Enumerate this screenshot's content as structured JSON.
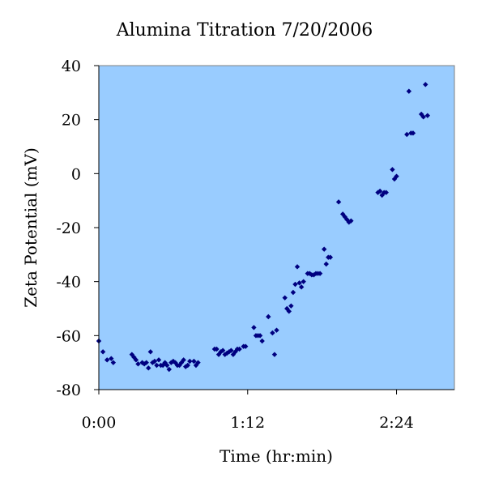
{
  "chart_data": {
    "type": "scatter",
    "title": "Alumina Titration 7/20/2006",
    "xlabel": "Time (hr:min)",
    "ylabel": "Zeta Potential (mV)",
    "xlim": [
      0,
      172
    ],
    "ylim": [
      -80,
      40
    ],
    "x_ticks": [
      {
        "value": 0,
        "label": "0:00"
      },
      {
        "value": 72,
        "label": "1:12"
      },
      {
        "value": 144,
        "label": "2:24"
      }
    ],
    "y_ticks": [
      {
        "value": 40,
        "label": "40"
      },
      {
        "value": 20,
        "label": "20"
      },
      {
        "value": 0,
        "label": "0"
      },
      {
        "value": -20,
        "label": "-20"
      },
      {
        "value": -40,
        "label": "-40"
      },
      {
        "value": -60,
        "label": "-60"
      },
      {
        "value": -80,
        "label": "-80"
      }
    ],
    "grid": false,
    "legend": "none",
    "colors": {
      "plot_background": "#99ccff",
      "marker": "#000080",
      "axis": "#000000"
    },
    "series": [
      {
        "points": [
          [
            0,
            -62
          ],
          [
            2,
            -66
          ],
          [
            4,
            -69
          ],
          [
            6,
            -68.5
          ],
          [
            7,
            -70
          ],
          [
            16,
            -67
          ],
          [
            17,
            -68
          ],
          [
            18,
            -69
          ],
          [
            19,
            -70.5
          ],
          [
            21,
            -70
          ],
          [
            22,
            -70.5
          ],
          [
            23,
            -70
          ],
          [
            24,
            -72
          ],
          [
            25,
            -66
          ],
          [
            26,
            -70
          ],
          [
            27,
            -69.5
          ],
          [
            28,
            -71
          ],
          [
            29,
            -69
          ],
          [
            30,
            -71
          ],
          [
            31,
            -71
          ],
          [
            32,
            -70
          ],
          [
            33,
            -71
          ],
          [
            34,
            -72.5
          ],
          [
            35,
            -70
          ],
          [
            36,
            -69.5
          ],
          [
            37,
            -70
          ],
          [
            38,
            -71
          ],
          [
            39,
            -71
          ],
          [
            40,
            -70
          ],
          [
            41,
            -69
          ],
          [
            42,
            -71.5
          ],
          [
            43,
            -71
          ],
          [
            44,
            -69.5
          ],
          [
            46,
            -69.5
          ],
          [
            47,
            -71
          ],
          [
            48,
            -70
          ],
          [
            56,
            -65
          ],
          [
            57,
            -65
          ],
          [
            58,
            -67
          ],
          [
            59,
            -66
          ],
          [
            60,
            -65.5
          ],
          [
            61,
            -67
          ],
          [
            62,
            -66.5
          ],
          [
            63,
            -66
          ],
          [
            64,
            -65.5
          ],
          [
            65,
            -67
          ],
          [
            66,
            -66
          ],
          [
            67,
            -65
          ],
          [
            68,
            -65
          ],
          [
            70,
            -64
          ],
          [
            71,
            -64
          ],
          [
            75,
            -57
          ],
          [
            76,
            -60
          ],
          [
            77,
            -60
          ],
          [
            78,
            -60
          ],
          [
            79,
            -62
          ],
          [
            82,
            -53
          ],
          [
            84,
            -59
          ],
          [
            85,
            -67
          ],
          [
            86,
            -58
          ],
          [
            90,
            -46
          ],
          [
            91,
            -50
          ],
          [
            92,
            -51
          ],
          [
            93,
            -49
          ],
          [
            94,
            -44
          ],
          [
            95,
            -41
          ],
          [
            96,
            -34.5
          ],
          [
            97,
            -40.5
          ],
          [
            98,
            -42
          ],
          [
            99,
            -40
          ],
          [
            101,
            -37
          ],
          [
            102,
            -37
          ],
          [
            103,
            -37.5
          ],
          [
            104,
            -37.5
          ],
          [
            105,
            -37
          ],
          [
            106,
            -37
          ],
          [
            107,
            -37
          ],
          [
            109,
            -28
          ],
          [
            110,
            -33.5
          ],
          [
            111,
            -31
          ],
          [
            112,
            -31
          ],
          [
            116,
            -10.5
          ],
          [
            118,
            -15
          ],
          [
            119,
            -16
          ],
          [
            120,
            -17
          ],
          [
            121,
            -18
          ],
          [
            122,
            -17.5
          ],
          [
            135,
            -7
          ],
          [
            136,
            -6.5
          ],
          [
            137,
            -8
          ],
          [
            138,
            -7
          ],
          [
            139,
            -7
          ],
          [
            142,
            1.5
          ],
          [
            143,
            -2
          ],
          [
            144,
            -1
          ],
          [
            149,
            14.5
          ],
          [
            150,
            30.5
          ],
          [
            151,
            15
          ],
          [
            152,
            15
          ],
          [
            156,
            22
          ],
          [
            157,
            21
          ],
          [
            158,
            33
          ],
          [
            159,
            21.5
          ]
        ]
      }
    ]
  }
}
